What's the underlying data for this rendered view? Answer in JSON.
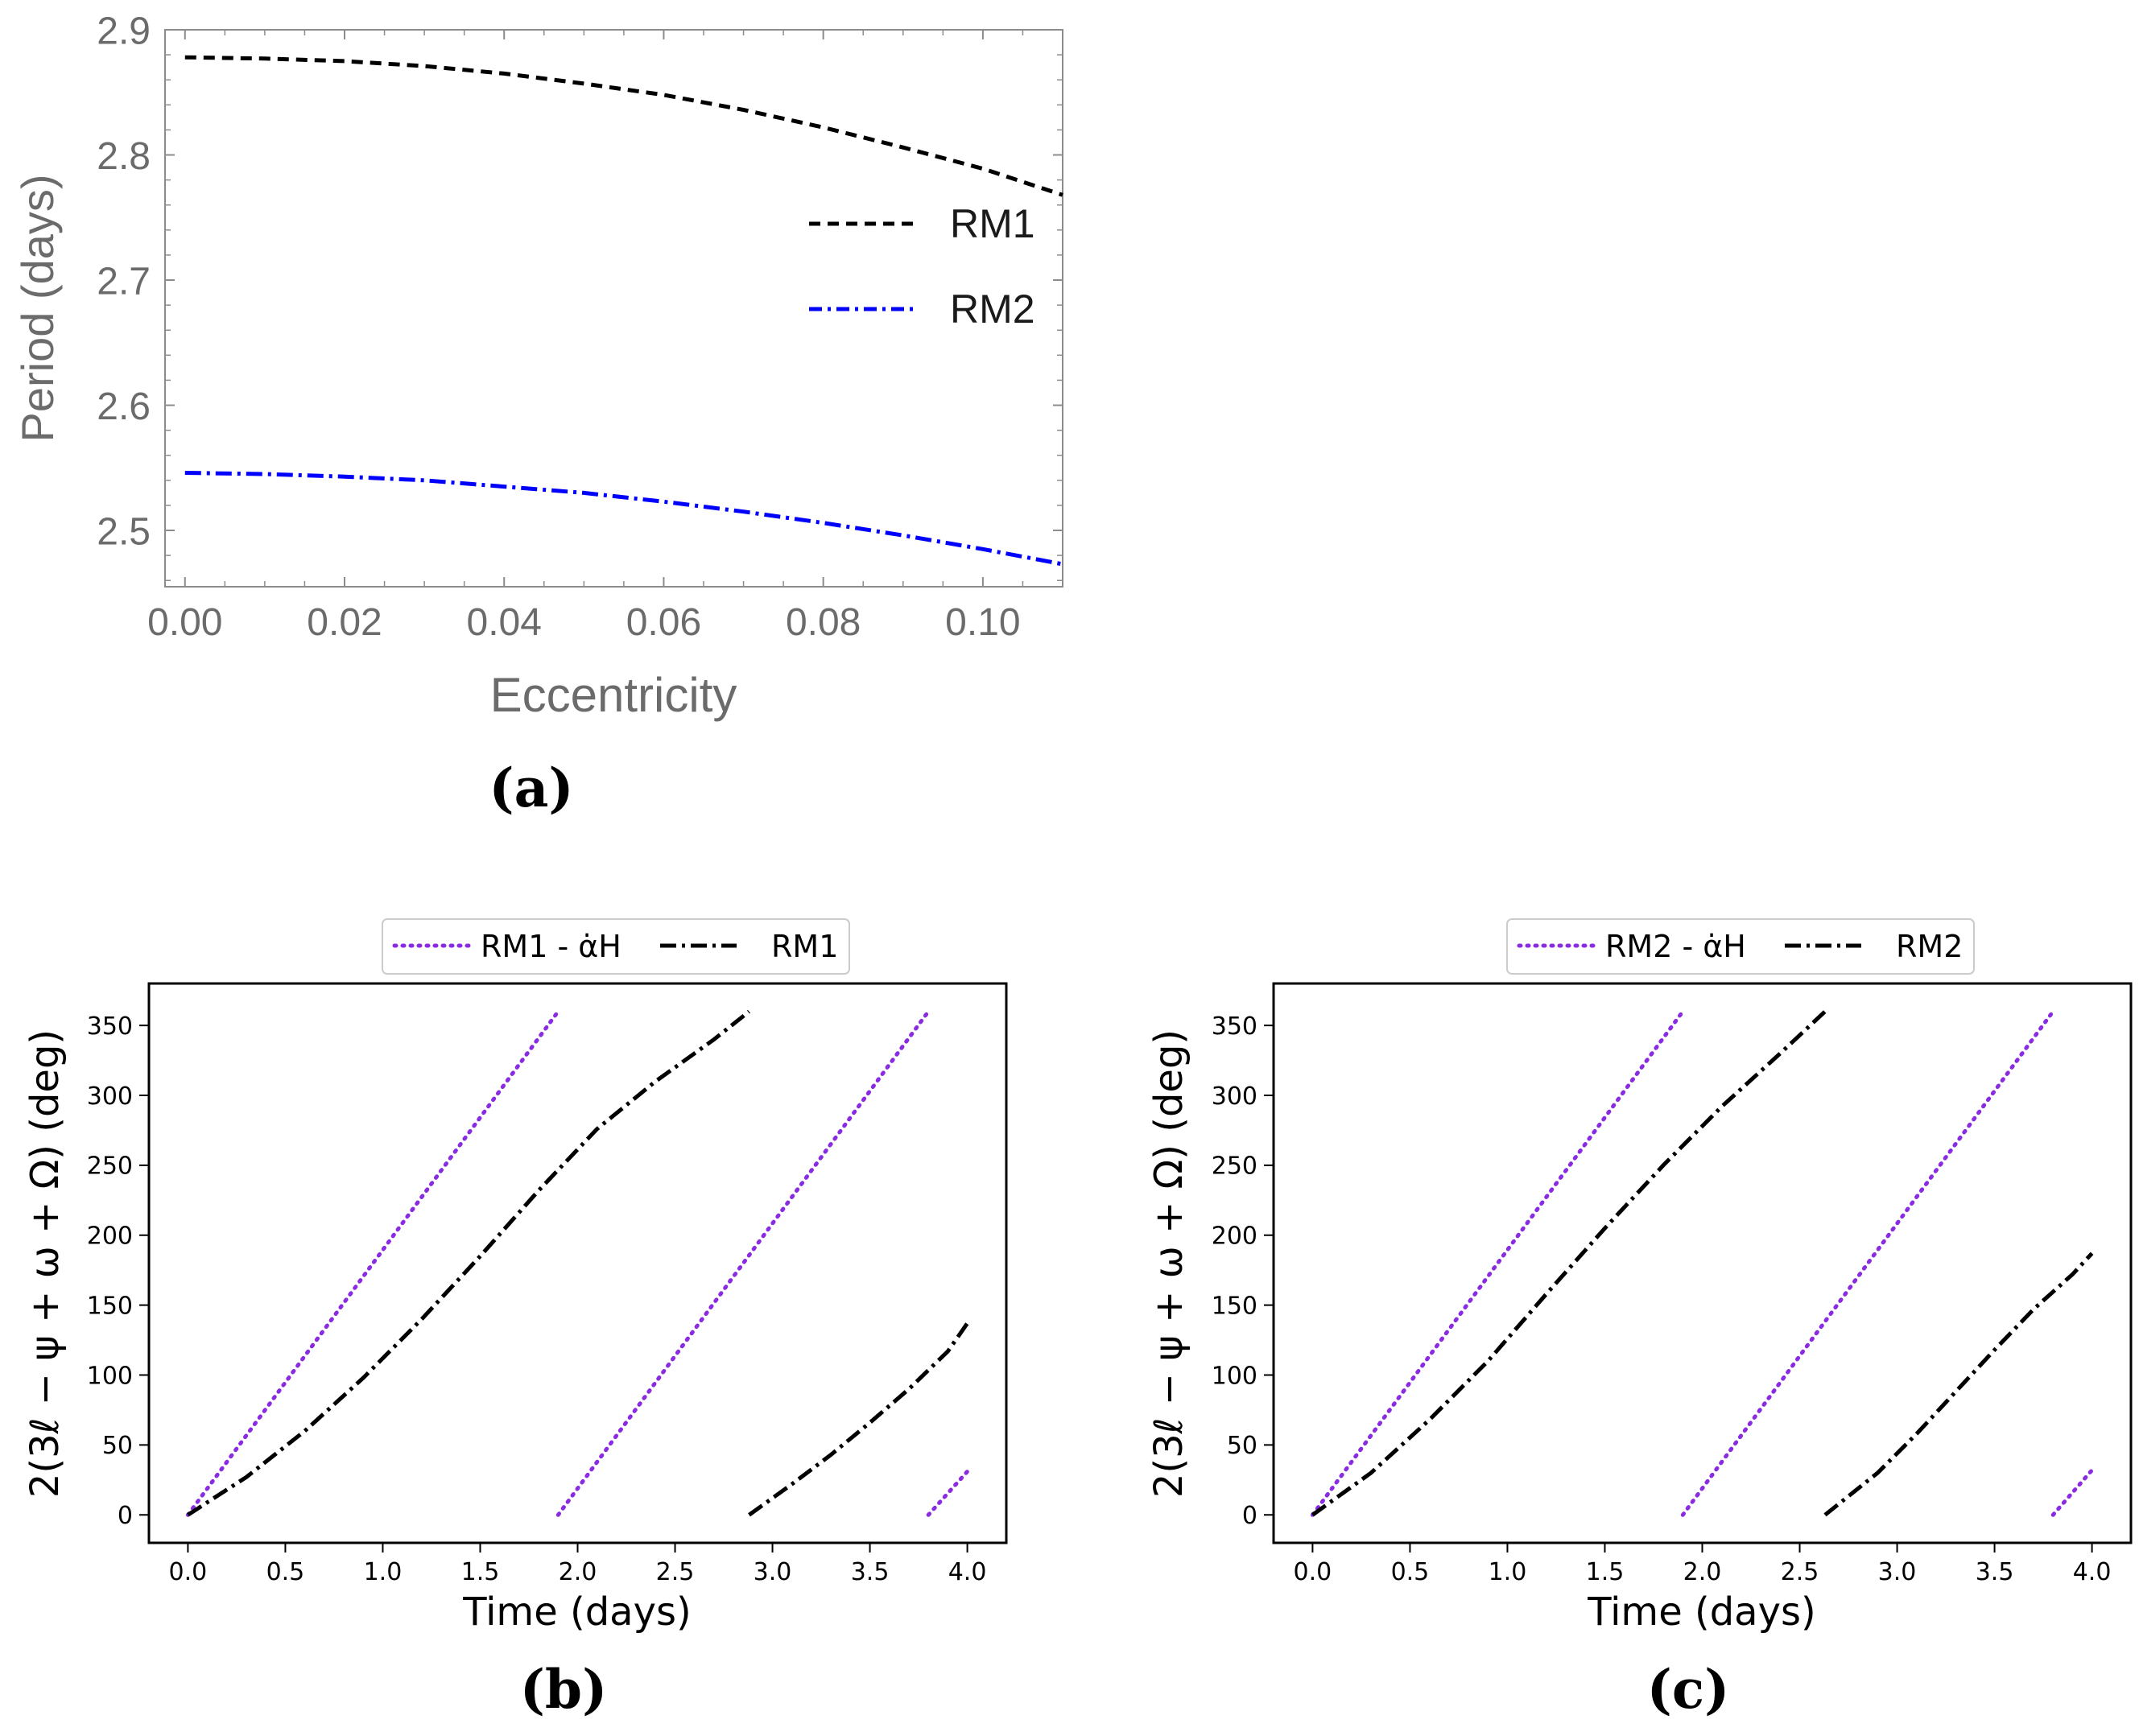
{
  "colors": {
    "rm1_a": "#000000",
    "rm2_a": "#0000ff",
    "alpha_h": "#8a2be2",
    "rm_line": "#000000",
    "axis_a": "#8c8c8c",
    "text_a": "#6b6b6b"
  },
  "chart_data": [
    {
      "panel": "a",
      "type": "line",
      "caption": "(a)",
      "xlabel": "Eccentricity",
      "ylabel": "Period (days)",
      "xlim": [
        -0.0025,
        0.11
      ],
      "ylim": [
        2.455,
        2.9
      ],
      "xticks": [
        0.0,
        0.02,
        0.04,
        0.06,
        0.08,
        0.1
      ],
      "xtick_labels": [
        "0.00",
        "0.02",
        "0.04",
        "0.06",
        "0.08",
        "0.10"
      ],
      "yticks": [
        2.5,
        2.6,
        2.7,
        2.8,
        2.9
      ],
      "ytick_labels": [
        "2.5",
        "2.6",
        "2.7",
        "2.8",
        "2.9"
      ],
      "legend_position": "right",
      "series": [
        {
          "name": "RM1",
          "style": "dashed",
          "color": "#000000",
          "x": [
            0.0,
            0.01,
            0.02,
            0.03,
            0.04,
            0.05,
            0.06,
            0.07,
            0.08,
            0.09,
            0.1,
            0.11
          ],
          "y": [
            2.878,
            2.877,
            2.875,
            2.871,
            2.865,
            2.857,
            2.848,
            2.836,
            2.822,
            2.806,
            2.789,
            2.768
          ]
        },
        {
          "name": "RM2",
          "style": "dashdot",
          "color": "#0000ff",
          "x": [
            0.0,
            0.01,
            0.02,
            0.03,
            0.04,
            0.05,
            0.06,
            0.07,
            0.08,
            0.09,
            0.1,
            0.11
          ],
          "y": [
            2.546,
            2.545,
            2.543,
            2.54,
            2.535,
            2.53,
            2.523,
            2.515,
            2.506,
            2.496,
            2.485,
            2.473
          ]
        }
      ]
    },
    {
      "panel": "b",
      "type": "line",
      "caption": "(b)",
      "xlabel": "Time (days)",
      "ylabel": "2(3ℓ − ψ + ω + Ω) (deg)",
      "xlim": [
        -0.2,
        4.2
      ],
      "ylim": [
        -20,
        380
      ],
      "xticks": [
        0.0,
        0.5,
        1.0,
        1.5,
        2.0,
        2.5,
        3.0,
        3.5,
        4.0
      ],
      "xtick_labels": [
        "0.0",
        "0.5",
        "1.0",
        "1.5",
        "2.0",
        "2.5",
        "3.0",
        "3.5",
        "4.0"
      ],
      "yticks": [
        0,
        50,
        100,
        150,
        200,
        250,
        300,
        350
      ],
      "ytick_labels": [
        "0",
        "50",
        "100",
        "150",
        "200",
        "250",
        "300",
        "350"
      ],
      "legend_position": "top-center",
      "legend": [
        "RM1 - α̇H",
        "RM1"
      ],
      "series": [
        {
          "name": "RM1 - α̇H",
          "style": "dotted",
          "color": "#8a2be2",
          "segments": [
            {
              "x": [
                0.0,
                1.9
              ],
              "y": [
                0,
                360
              ]
            },
            {
              "x": [
                1.9,
                3.8
              ],
              "y": [
                0,
                360
              ]
            },
            {
              "x": [
                3.8,
                4.0
              ],
              "y": [
                0,
                31
              ]
            }
          ]
        },
        {
          "name": "RM1",
          "style": "dashdot",
          "color": "#000000",
          "segments": [
            {
              "x": [
                0.0,
                0.3,
                0.6,
                0.9,
                1.2,
                1.5,
                1.8,
                2.1,
                2.4,
                2.7,
                2.88
              ],
              "y": [
                0,
                27,
                60,
                98,
                140,
                185,
                232,
                276,
                310,
                340,
                360
              ]
            },
            {
              "x": [
                2.88,
                3.1,
                3.3,
                3.5,
                3.7,
                3.9,
                4.0
              ],
              "y": [
                0,
                22,
                43,
                66,
                90,
                117,
                137
              ]
            }
          ]
        }
      ]
    },
    {
      "panel": "c",
      "type": "line",
      "caption": "(c)",
      "xlabel": "Time (days)",
      "ylabel": "2(3ℓ − ψ + ω + Ω) (deg)",
      "xlim": [
        -0.2,
        4.2
      ],
      "ylim": [
        -20,
        380
      ],
      "xticks": [
        0.0,
        0.5,
        1.0,
        1.5,
        2.0,
        2.5,
        3.0,
        3.5,
        4.0
      ],
      "xtick_labels": [
        "0.0",
        "0.5",
        "1.0",
        "1.5",
        "2.0",
        "2.5",
        "3.0",
        "3.5",
        "4.0"
      ],
      "yticks": [
        0,
        50,
        100,
        150,
        200,
        250,
        300,
        350
      ],
      "ytick_labels": [
        "0",
        "50",
        "100",
        "150",
        "200",
        "250",
        "300",
        "350"
      ],
      "legend_position": "top-center",
      "legend": [
        "RM2 - α̇H",
        "RM2"
      ],
      "series": [
        {
          "name": "RM2 - α̇H",
          "style": "dotted",
          "color": "#8a2be2",
          "segments": [
            {
              "x": [
                0.0,
                1.9
              ],
              "y": [
                0,
                360
              ]
            },
            {
              "x": [
                1.9,
                3.8
              ],
              "y": [
                0,
                360
              ]
            },
            {
              "x": [
                3.8,
                4.0
              ],
              "y": [
                0,
                32
              ]
            }
          ]
        },
        {
          "name": "RM2",
          "style": "dashdot",
          "color": "#000000",
          "segments": [
            {
              "x": [
                0.0,
                0.3,
                0.6,
                0.9,
                1.2,
                1.5,
                1.8,
                2.1,
                2.4,
                2.63
              ],
              "y": [
                0,
                30,
                68,
                110,
                158,
                205,
                250,
                292,
                330,
                360
              ]
            },
            {
              "x": [
                2.63,
                2.9,
                3.1,
                3.3,
                3.5,
                3.7,
                3.9,
                4.0
              ],
              "y": [
                0,
                30,
                58,
                88,
                118,
                147,
                172,
                187
              ]
            }
          ]
        }
      ]
    }
  ]
}
